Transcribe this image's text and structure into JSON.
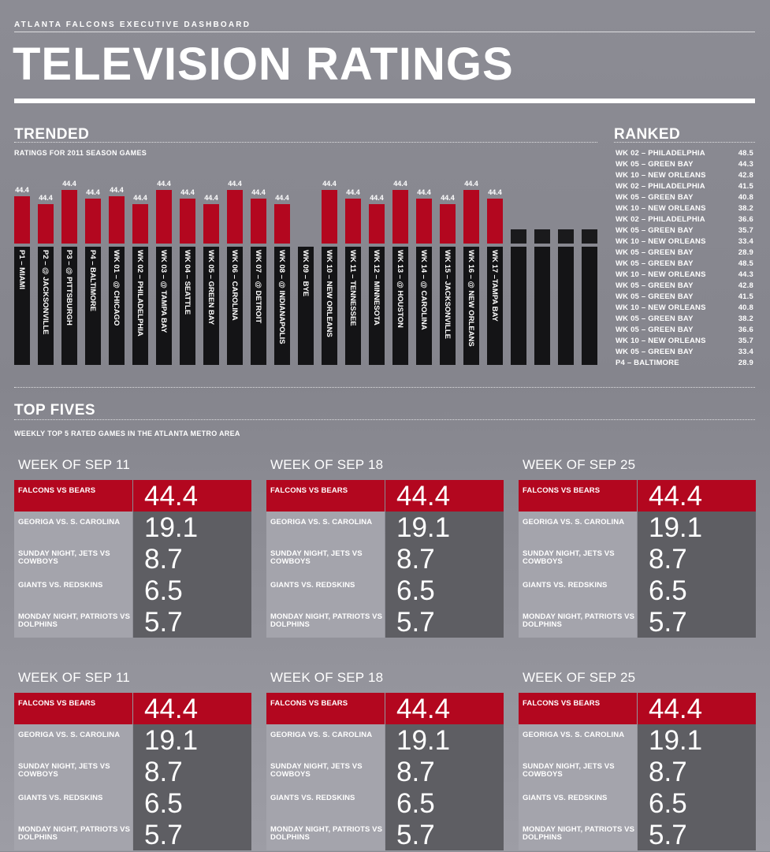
{
  "header": {
    "dashboard_title": "ATLANTA FALCONS EXECUTIVE DASHBOARD",
    "page_title": "TELEVISION RATINGS"
  },
  "trended": {
    "title": "TRENDED",
    "subtitle": "RATINGS FOR 2011 SEASON GAMES"
  },
  "chart_data": {
    "type": "bar",
    "title": "TRENDED",
    "subtitle": "RATINGS FOR 2011 SEASON GAMES",
    "categories": [
      "P1 – MIAMI",
      "P2 – @ JACKSONVILLE",
      "P3 – @ PITTSBURGH",
      "P4 – BALTIMORE",
      "WK 01 – @ CHICAGO",
      "WK 02 – PHILADELPHIA",
      "WK 03 – @ TAMPA BAY",
      "WK 04 – SEATTLE",
      "WK 05 – GREEN BAY",
      "WK 06 – CAROLINA",
      "WK 07 – @ DETROIT",
      "WK 08 – @ INDIANAPOLIS",
      "WK 09 – BYE",
      "WK 10 – NEW ORLEANS",
      "WK 11 – TENNESSEE",
      "WK 12 – MINNESOTA",
      "WK 13 – @ HOUSTON",
      "WK 14 – @ CAROLINA",
      "WK 15 – JACKSONVILLE",
      "WK 16 – @ NEW ORLEANS",
      "WK 17 –TAMPA BAY",
      "",
      "",
      "",
      ""
    ],
    "values": [
      44.4,
      44.4,
      44.4,
      44.4,
      44.4,
      44.4,
      44.4,
      44.4,
      44.4,
      44.4,
      44.4,
      44.4,
      null,
      44.4,
      44.4,
      44.4,
      44.4,
      44.4,
      44.4,
      44.4,
      44.4,
      null,
      null,
      null,
      null
    ],
    "value_labels": [
      "44.4",
      "44.4",
      "44.4",
      "44.4",
      "44.4",
      "44.4",
      "44.4",
      "44.4",
      "44.4",
      "44.4",
      "44.4",
      "44.4",
      "",
      "44.4",
      "44.4",
      "44.4",
      "44.4",
      "44.4",
      "44.4",
      "44.4",
      "44.4",
      "",
      "",
      "",
      ""
    ],
    "bar_heights_rel": [
      0.6,
      0.5,
      0.68,
      0.57,
      0.6,
      0.5,
      0.68,
      0.57,
      0.5,
      0.68,
      0.57,
      0.5,
      0,
      0.68,
      0.57,
      0.5,
      0.68,
      0.57,
      0.5,
      0.68,
      0.57,
      0.18,
      0.18,
      0.18,
      0.18
    ],
    "colors": {
      "bar": "#b3071f",
      "label_bar": "#141416",
      "placeholder": "#1a1a1c"
    }
  },
  "ranked": {
    "title": "RANKED",
    "items": [
      {
        "label": "WK 02 – PHILADELPHIA",
        "value": "48.5"
      },
      {
        "label": "WK 05 – GREEN BAY",
        "value": "44.3"
      },
      {
        "label": "WK 10 – NEW ORLEANS",
        "value": "42.8"
      },
      {
        "label": "WK 02 – PHILADELPHIA",
        "value": "41.5"
      },
      {
        "label": "WK 05 – GREEN BAY",
        "value": "40.8"
      },
      {
        "label": "WK 10 – NEW ORLEANS",
        "value": "38.2"
      },
      {
        "label": "WK 02 – PHILADELPHIA",
        "value": "36.6"
      },
      {
        "label": "WK 05 – GREEN BAY",
        "value": "35.7"
      },
      {
        "label": "WK 10 – NEW ORLEANS",
        "value": "33.4"
      },
      {
        "label": "WK 05 – GREEN BAY",
        "value": "28.9"
      },
      {
        "label": "WK 05 – GREEN BAY",
        "value": "48.5"
      },
      {
        "label": "WK 10 – NEW ORLEANS",
        "value": "44.3"
      },
      {
        "label": "WK 05 – GREEN BAY",
        "value": "42.8"
      },
      {
        "label": "WK 05 – GREEN BAY",
        "value": "41.5"
      },
      {
        "label": "WK 10 – NEW ORLEANS",
        "value": "40.8"
      },
      {
        "label": "WK 05 – GREEN BAY",
        "value": "38.2"
      },
      {
        "label": "WK 05 – GREEN BAY",
        "value": "36.6"
      },
      {
        "label": "WK 10 – NEW ORLEANS",
        "value": "35.7"
      },
      {
        "label": "WK 05 – GREEN BAY",
        "value": "33.4"
      },
      {
        "label": "P4 – BALTIMORE",
        "value": "28.9"
      }
    ]
  },
  "top_fives": {
    "title": "TOP FIVES",
    "subtitle": "WEEKLY TOP 5 RATED GAMES IN THE ATLANTA METRO AREA",
    "tables": [
      {
        "week": "WEEK OF SEP 11",
        "rows": [
          {
            "label": "FALCONS VS BEARS",
            "value": "44.4"
          },
          {
            "label": "GEORIGA VS. S. CAROLINA",
            "value": "19.1"
          },
          {
            "label": "SUNDAY NIGHT, JETS VS COWBOYS",
            "value": "8.7"
          },
          {
            "label": "GIANTS VS. REDSKINS",
            "value": "6.5"
          },
          {
            "label": "MONDAY NIGHT,  PATRIOTS VS DOLPHINS",
            "value": "5.7"
          }
        ]
      },
      {
        "week": "WEEK OF SEP 18",
        "rows": [
          {
            "label": "FALCONS VS BEARS",
            "value": "44.4"
          },
          {
            "label": "GEORIGA VS. S. CAROLINA",
            "value": "19.1"
          },
          {
            "label": "SUNDAY NIGHT, JETS VS COWBOYS",
            "value": "8.7"
          },
          {
            "label": "GIANTS VS. REDSKINS",
            "value": "6.5"
          },
          {
            "label": "MONDAY NIGHT,  PATRIOTS VS DOLPHINS",
            "value": "5.7"
          }
        ]
      },
      {
        "week": "WEEK OF SEP 25",
        "rows": [
          {
            "label": "FALCONS VS BEARS",
            "value": "44.4"
          },
          {
            "label": "GEORIGA VS. S. CAROLINA",
            "value": "19.1"
          },
          {
            "label": "SUNDAY NIGHT, JETS VS COWBOYS",
            "value": "8.7"
          },
          {
            "label": "GIANTS VS. REDSKINS",
            "value": "6.5"
          },
          {
            "label": "MONDAY NIGHT,  PATRIOTS VS DOLPHINS",
            "value": "5.7"
          }
        ]
      },
      {
        "week": "WEEK OF SEP 11",
        "rows": [
          {
            "label": "FALCONS VS BEARS",
            "value": "44.4"
          },
          {
            "label": "GEORIGA VS. S. CAROLINA",
            "value": "19.1"
          },
          {
            "label": "SUNDAY NIGHT, JETS VS COWBOYS",
            "value": "8.7"
          },
          {
            "label": "GIANTS VS. REDSKINS",
            "value": "6.5"
          },
          {
            "label": "MONDAY NIGHT,  PATRIOTS VS DOLPHINS",
            "value": "5.7"
          }
        ]
      },
      {
        "week": "WEEK OF SEP 18",
        "rows": [
          {
            "label": "FALCONS VS BEARS",
            "value": "44.4"
          },
          {
            "label": "GEORIGA VS. S. CAROLINA",
            "value": "19.1"
          },
          {
            "label": "SUNDAY NIGHT, JETS VS COWBOYS",
            "value": "8.7"
          },
          {
            "label": "GIANTS VS. REDSKINS",
            "value": "6.5"
          },
          {
            "label": "MONDAY NIGHT,  PATRIOTS VS DOLPHINS",
            "value": "5.7"
          }
        ]
      },
      {
        "week": "WEEK OF SEP 25",
        "rows": [
          {
            "label": "FALCONS VS BEARS",
            "value": "44.4"
          },
          {
            "label": "GEORIGA VS. S. CAROLINA",
            "value": "19.1"
          },
          {
            "label": "SUNDAY NIGHT, JETS VS COWBOYS",
            "value": "8.7"
          },
          {
            "label": "GIANTS VS. REDSKINS",
            "value": "6.5"
          },
          {
            "label": "MONDAY NIGHT,  PATRIOTS VS DOLPHINS",
            "value": "5.7"
          }
        ]
      }
    ]
  },
  "colors": {
    "accent_red": "#b3071f",
    "dark_cell": "#5e5e63",
    "light_cell": "#a4a4ac",
    "background": "#8c8c94"
  }
}
